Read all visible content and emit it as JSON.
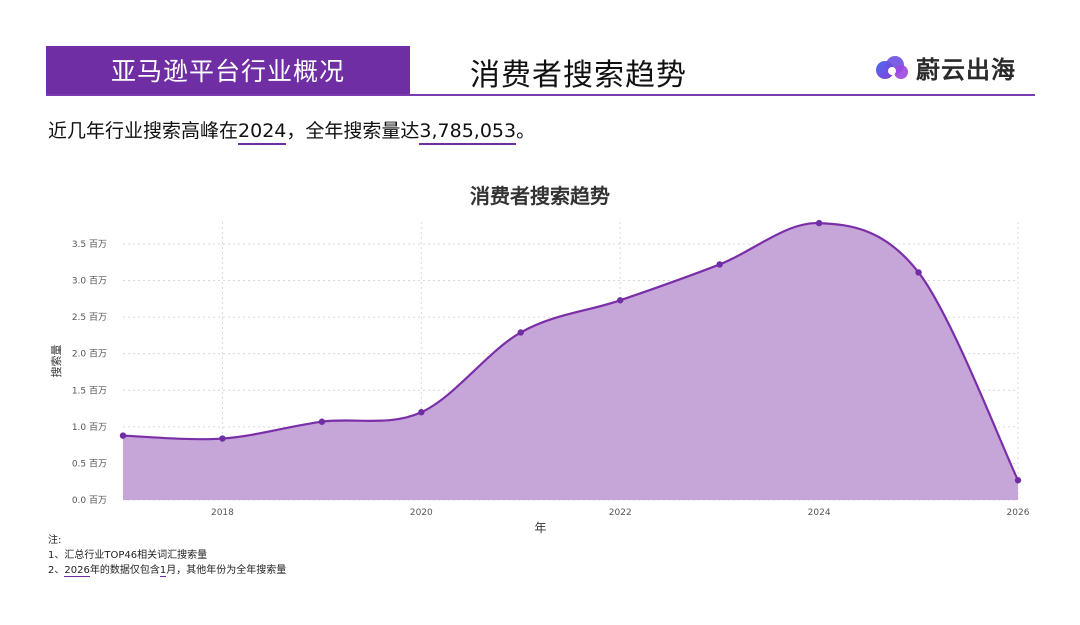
{
  "header": {
    "section_label": "亚马逊平台行业概况",
    "title": "消费者搜索趋势",
    "brand_name": "蔚云出海",
    "brand_icon": "cloud-logo-icon"
  },
  "summary": {
    "prefix": "近几年行业搜索高峰在",
    "peak_year": "2024",
    "middle": "，全年搜索量达",
    "total": "3,785,053",
    "suffix": "。"
  },
  "chart_data": {
    "type": "area",
    "title": "消费者搜索趋势",
    "xlabel": "年",
    "ylabel": "搜索量",
    "x": [
      2017.0,
      2018.0,
      2019.0,
      2020.0,
      2021.0,
      2022.0,
      2023.0,
      2024.0,
      2025.0,
      2026.0
    ],
    "values": [
      0.88,
      0.84,
      1.07,
      1.2,
      2.29,
      2.73,
      3.22,
      3.785053,
      3.11,
      0.27
    ],
    "xlim": [
      2017.0,
      2026.0
    ],
    "ylim": [
      0,
      3.8
    ],
    "x_ticks": [
      "2018",
      "2020",
      "2022",
      "2024",
      "2026"
    ],
    "y_ticks": [
      "0.0 百万",
      "0.5 百万",
      "1.0 百万",
      "1.5 百万",
      "2.0 百万",
      "2.5 百万",
      "3.0 百万",
      "3.5 百万"
    ],
    "grid": true,
    "colors": {
      "line": "#7a2ea8",
      "fill": "#c6a6d8",
      "point": "#6f2ea3"
    }
  },
  "notes": {
    "heading": "注:",
    "line1": "1、汇总行业TOP46相关词汇搜索量",
    "line2_year": "2026",
    "line2_mid": "年的数据仅包含",
    "line2_month": "1",
    "line2_end": "月，其他年份为全年搜索量"
  }
}
